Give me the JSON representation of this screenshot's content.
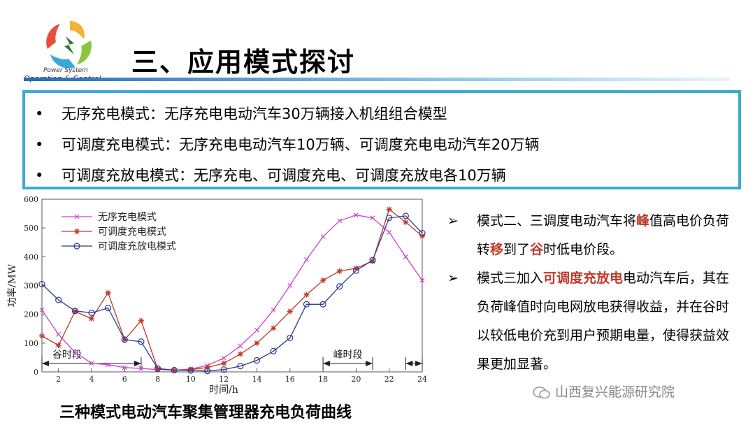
{
  "logo": {
    "sub": "Power System",
    "main": "Operation & Control"
  },
  "title": "三、应用模式探讨",
  "bullets": [
    "无序充电模式：无序充电电动汽车30万辆接入机组组合模型",
    "可调度充电模式：无序充电电动汽车10万辆、可调度充电电动汽车20万辆",
    "可调度充放电模式：无序充电、可调度充电、可调度充放电各10万辆"
  ],
  "bullet_symbol": "•",
  "chart_data": {
    "type": "line",
    "title": "",
    "xlabel": "时间/h",
    "ylabel": "功率/MW",
    "xlim": [
      1,
      24
    ],
    "ylim": [
      0,
      600
    ],
    "xticks": [
      2,
      4,
      6,
      8,
      10,
      12,
      14,
      16,
      18,
      20,
      22,
      24
    ],
    "yticks": [
      0,
      100,
      200,
      300,
      400,
      500,
      600
    ],
    "grid": false,
    "legend_position": "top-left",
    "x": [
      1,
      2,
      3,
      4,
      5,
      6,
      7,
      8,
      9,
      10,
      11,
      12,
      13,
      14,
      15,
      16,
      17,
      18,
      19,
      20,
      21,
      22,
      23,
      24
    ],
    "series": [
      {
        "name": "无序充电模式",
        "color": "#cc44cc",
        "marker": "x",
        "values": [
          215,
          130,
          68,
          30,
          25,
          15,
          12,
          8,
          6,
          10,
          22,
          48,
          90,
          145,
          215,
          300,
          390,
          470,
          525,
          545,
          535,
          485,
          400,
          318
        ]
      },
      {
        "name": "可调度充电模式",
        "color": "#c0392b",
        "marker": "star",
        "values": [
          125,
          92,
          210,
          185,
          275,
          112,
          178,
          10,
          5,
          8,
          15,
          30,
          62,
          100,
          152,
          210,
          268,
          318,
          350,
          360,
          385,
          565,
          520,
          472
        ]
      },
      {
        "name": "可调度充放电模式",
        "color": "#2e3a8c",
        "marker": "circle",
        "values": [
          305,
          250,
          212,
          205,
          222,
          112,
          105,
          12,
          6,
          5,
          3,
          8,
          20,
          40,
          72,
          118,
          235,
          235,
          297,
          352,
          388,
          535,
          542,
          482
        ]
      }
    ],
    "annotations": [
      {
        "label": "谷时段",
        "x_start": 1,
        "x_end": 7
      },
      {
        "label": "峰时段",
        "x_start": 18,
        "x_end": 21
      },
      {
        "label": "",
        "x_start": 23,
        "x_end": 24
      }
    ]
  },
  "caption": "三种模式电动汽车聚集管理器充电负荷曲线",
  "right_text": {
    "arrow": "➢",
    "item1": {
      "a": "模式二、三调度电动汽车将",
      "b": "峰",
      "c": "值高电价负荷转",
      "d": "移",
      "e": "到了",
      "f": "谷",
      "g": "时低电价段。"
    },
    "item2": {
      "a": "模式三加入",
      "b": "可调度充放电",
      "c": "电动汽车后，其在负荷峰值时向电网放电获得收益，并在谷时以较低电价充到用户预期电量，使得获益效果更加显著。"
    }
  },
  "watermark": "山西复兴能源研究院"
}
